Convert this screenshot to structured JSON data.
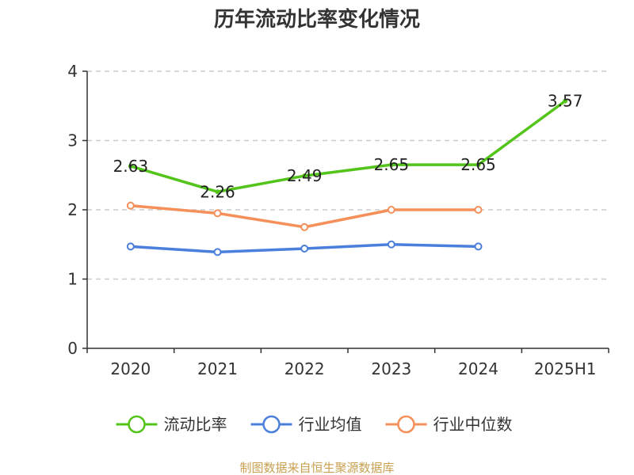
{
  "chart_data": {
    "type": "line",
    "title": "历年流动比率变化情况",
    "categories": [
      "2020",
      "2021",
      "2022",
      "2023",
      "2024",
      "2025H1"
    ],
    "ylim": [
      0,
      4
    ],
    "yticks": [
      "0",
      "1",
      "2",
      "3",
      "4"
    ],
    "grid": true,
    "legend_position": "bottom",
    "series": [
      {
        "name": "流动比率",
        "color": "#52c41a",
        "values": [
          2.63,
          2.26,
          2.49,
          2.65,
          2.65,
          3.57
        ],
        "labels": [
          "2.63",
          "2.26",
          "2.49",
          "2.65",
          "2.65",
          "3.57"
        ]
      },
      {
        "name": "行业均值",
        "color": "#4a7fdc",
        "values": [
          1.47,
          1.39,
          1.44,
          1.5,
          1.47,
          null
        ]
      },
      {
        "name": "行业中位数",
        "color": "#f5905a",
        "values": [
          2.06,
          1.95,
          1.75,
          2.0,
          2.0,
          null
        ]
      }
    ]
  },
  "source_text": "制图数据来自恒生聚源数据库",
  "source_color": "#c8a050"
}
